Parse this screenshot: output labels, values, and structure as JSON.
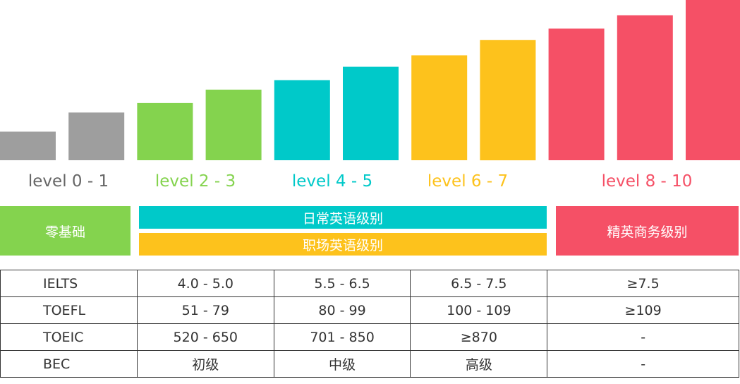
{
  "chart_data": {
    "type": "bar",
    "title": "",
    "xlabel": "",
    "ylabel": "",
    "values": [
      1.5,
      2.5,
      3.0,
      3.7,
      4.2,
      4.9,
      5.5,
      6.3,
      6.9,
      7.6,
      8.4
    ],
    "bar_colors": [
      "#9e9e9e",
      "#9e9e9e",
      "#84d34e",
      "#84d34e",
      "#00c9c9",
      "#00c9c9",
      "#fdc21c",
      "#fdc21c",
      "#f55066",
      "#f55066",
      "#f55066"
    ],
    "ylim": [
      0,
      8.4
    ],
    "grid": false
  },
  "levels": [
    {
      "text": "level 0 - 1",
      "color": "#666666"
    },
    {
      "text": "level 2 - 3",
      "color": "#84d34e"
    },
    {
      "text": "level 4 - 5",
      "color": "#00c9c9"
    },
    {
      "text": "level 6 - 7",
      "color": "#fdc21c"
    },
    {
      "text": "level 8 - 10",
      "color": "#f55066"
    }
  ],
  "bands": {
    "zero_basic": "零基础",
    "daily_english": "日常英语级别",
    "workplace_english": "职场英语级别",
    "elite_business": "精英商务级别"
  },
  "table": {
    "rows": [
      [
        "IELTS",
        "4.0 - 5.0",
        "5.5 - 6.5",
        "6.5 - 7.5",
        "≥7.5"
      ],
      [
        "TOEFL",
        "51 - 79",
        "80 - 99",
        "100 - 109",
        "≥109"
      ],
      [
        "TOEIC",
        "520 - 650",
        "701 - 850",
        "≥870",
        "-"
      ],
      [
        "BEC",
        "初级",
        "中级",
        "高级",
        "-"
      ]
    ]
  }
}
